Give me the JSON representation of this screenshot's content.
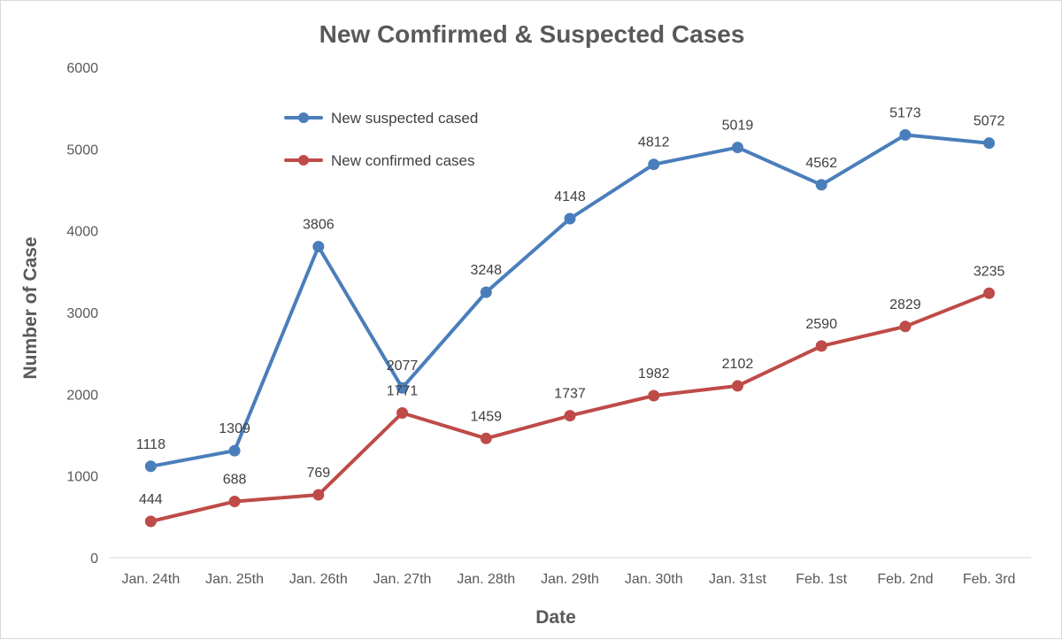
{
  "chart_data": {
    "type": "line",
    "title": "New Comfirmed & Suspected Cases",
    "xlabel": "Date",
    "ylabel": "Number of Case",
    "categories": [
      "Jan. 24th",
      "Jan. 25th",
      "Jan. 26th",
      "Jan. 27th",
      "Jan. 28th",
      "Jan. 29th",
      "Jan. 30th",
      "Jan. 31st",
      "Feb. 1st",
      "Feb. 2nd",
      "Feb. 3rd"
    ],
    "ylim": [
      0,
      6000
    ],
    "yticks": [
      "0",
      "1000",
      "2000",
      "3000",
      "4000",
      "5000",
      "6000"
    ],
    "grid": false,
    "legend_position": "top-left",
    "series": [
      {
        "name": "New suspected cased",
        "color": "#4a7ebb",
        "values": [
          1118,
          1309,
          3806,
          2077,
          3248,
          4148,
          4812,
          5019,
          4562,
          5173,
          5072
        ],
        "labels": [
          "1118",
          "1309",
          "3806",
          "2077",
          "3248",
          "4148",
          "4812",
          "5019",
          "4562",
          "5173",
          "5072"
        ]
      },
      {
        "name": "New confirmed cases",
        "color": "#be4b48",
        "values": [
          444,
          688,
          769,
          1771,
          1459,
          1737,
          1982,
          2102,
          2590,
          2829,
          3235
        ],
        "labels": [
          "444",
          "688",
          "769",
          "1771",
          "1459",
          "1737",
          "1982",
          "2102",
          "2590",
          "2829",
          "3235"
        ]
      }
    ]
  }
}
